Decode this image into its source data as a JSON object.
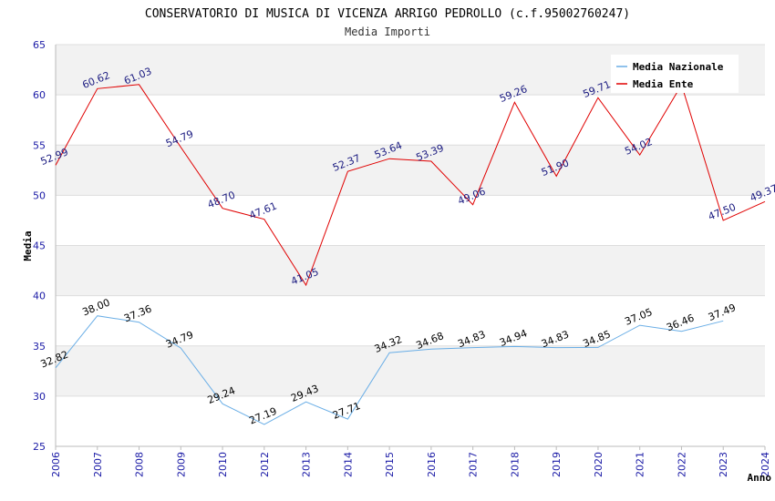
{
  "chart_data": {
    "type": "line",
    "title": "CONSERVATORIO DI MUSICA DI VICENZA ARRIGO PEDROLLO (c.f.95002760247)",
    "subtitle": "Media Importi",
    "xlabel": "Anno",
    "ylabel": "Media",
    "ylim": [
      25,
      65
    ],
    "yticks": [
      "25",
      "30",
      "35",
      "40",
      "45",
      "50",
      "55",
      "60",
      "65"
    ],
    "categories": [
      "2006",
      "2007",
      "2008",
      "2009",
      "2010",
      "2012",
      "2013",
      "2014",
      "2015",
      "2016",
      "2017",
      "2018",
      "2019",
      "2020",
      "2021",
      "2022",
      "2023",
      "2024"
    ],
    "grid": true,
    "legend_position": "top-right",
    "series": [
      {
        "name": "Media Nazionale",
        "color": "#6aaee6",
        "label_color": "#000000",
        "values": [
          32.82,
          38.0,
          37.36,
          34.79,
          29.24,
          27.19,
          29.43,
          27.71,
          34.32,
          34.68,
          34.83,
          34.94,
          34.83,
          34.85,
          37.05,
          36.46,
          37.49,
          null
        ],
        "labels": [
          "32.82",
          "38.00",
          "37.36",
          "34.79",
          "29.24",
          "27.19",
          "29.43",
          "27.71",
          "34.32",
          "34.68",
          "34.83",
          "34.94",
          "34.83",
          "34.85",
          "37.05",
          "36.46",
          "37.49",
          ""
        ]
      },
      {
        "name": "Media Ente",
        "color": "#e00000",
        "label_color": "#1a1a80",
        "values": [
          52.99,
          60.62,
          61.03,
          54.79,
          48.7,
          47.61,
          41.05,
          52.37,
          53.64,
          53.39,
          49.06,
          59.26,
          51.9,
          59.71,
          54.02,
          61.0,
          47.5,
          49.37
        ],
        "labels": [
          "52.99",
          "60.62",
          "61.03",
          "54.79",
          "48.70",
          "47.61",
          "41.05",
          "52.37",
          "53.64",
          "53.39",
          "49.06",
          "59.26",
          "51.90",
          "59.71",
          "54.02",
          "",
          "47.50",
          "49.37"
        ]
      }
    ]
  }
}
